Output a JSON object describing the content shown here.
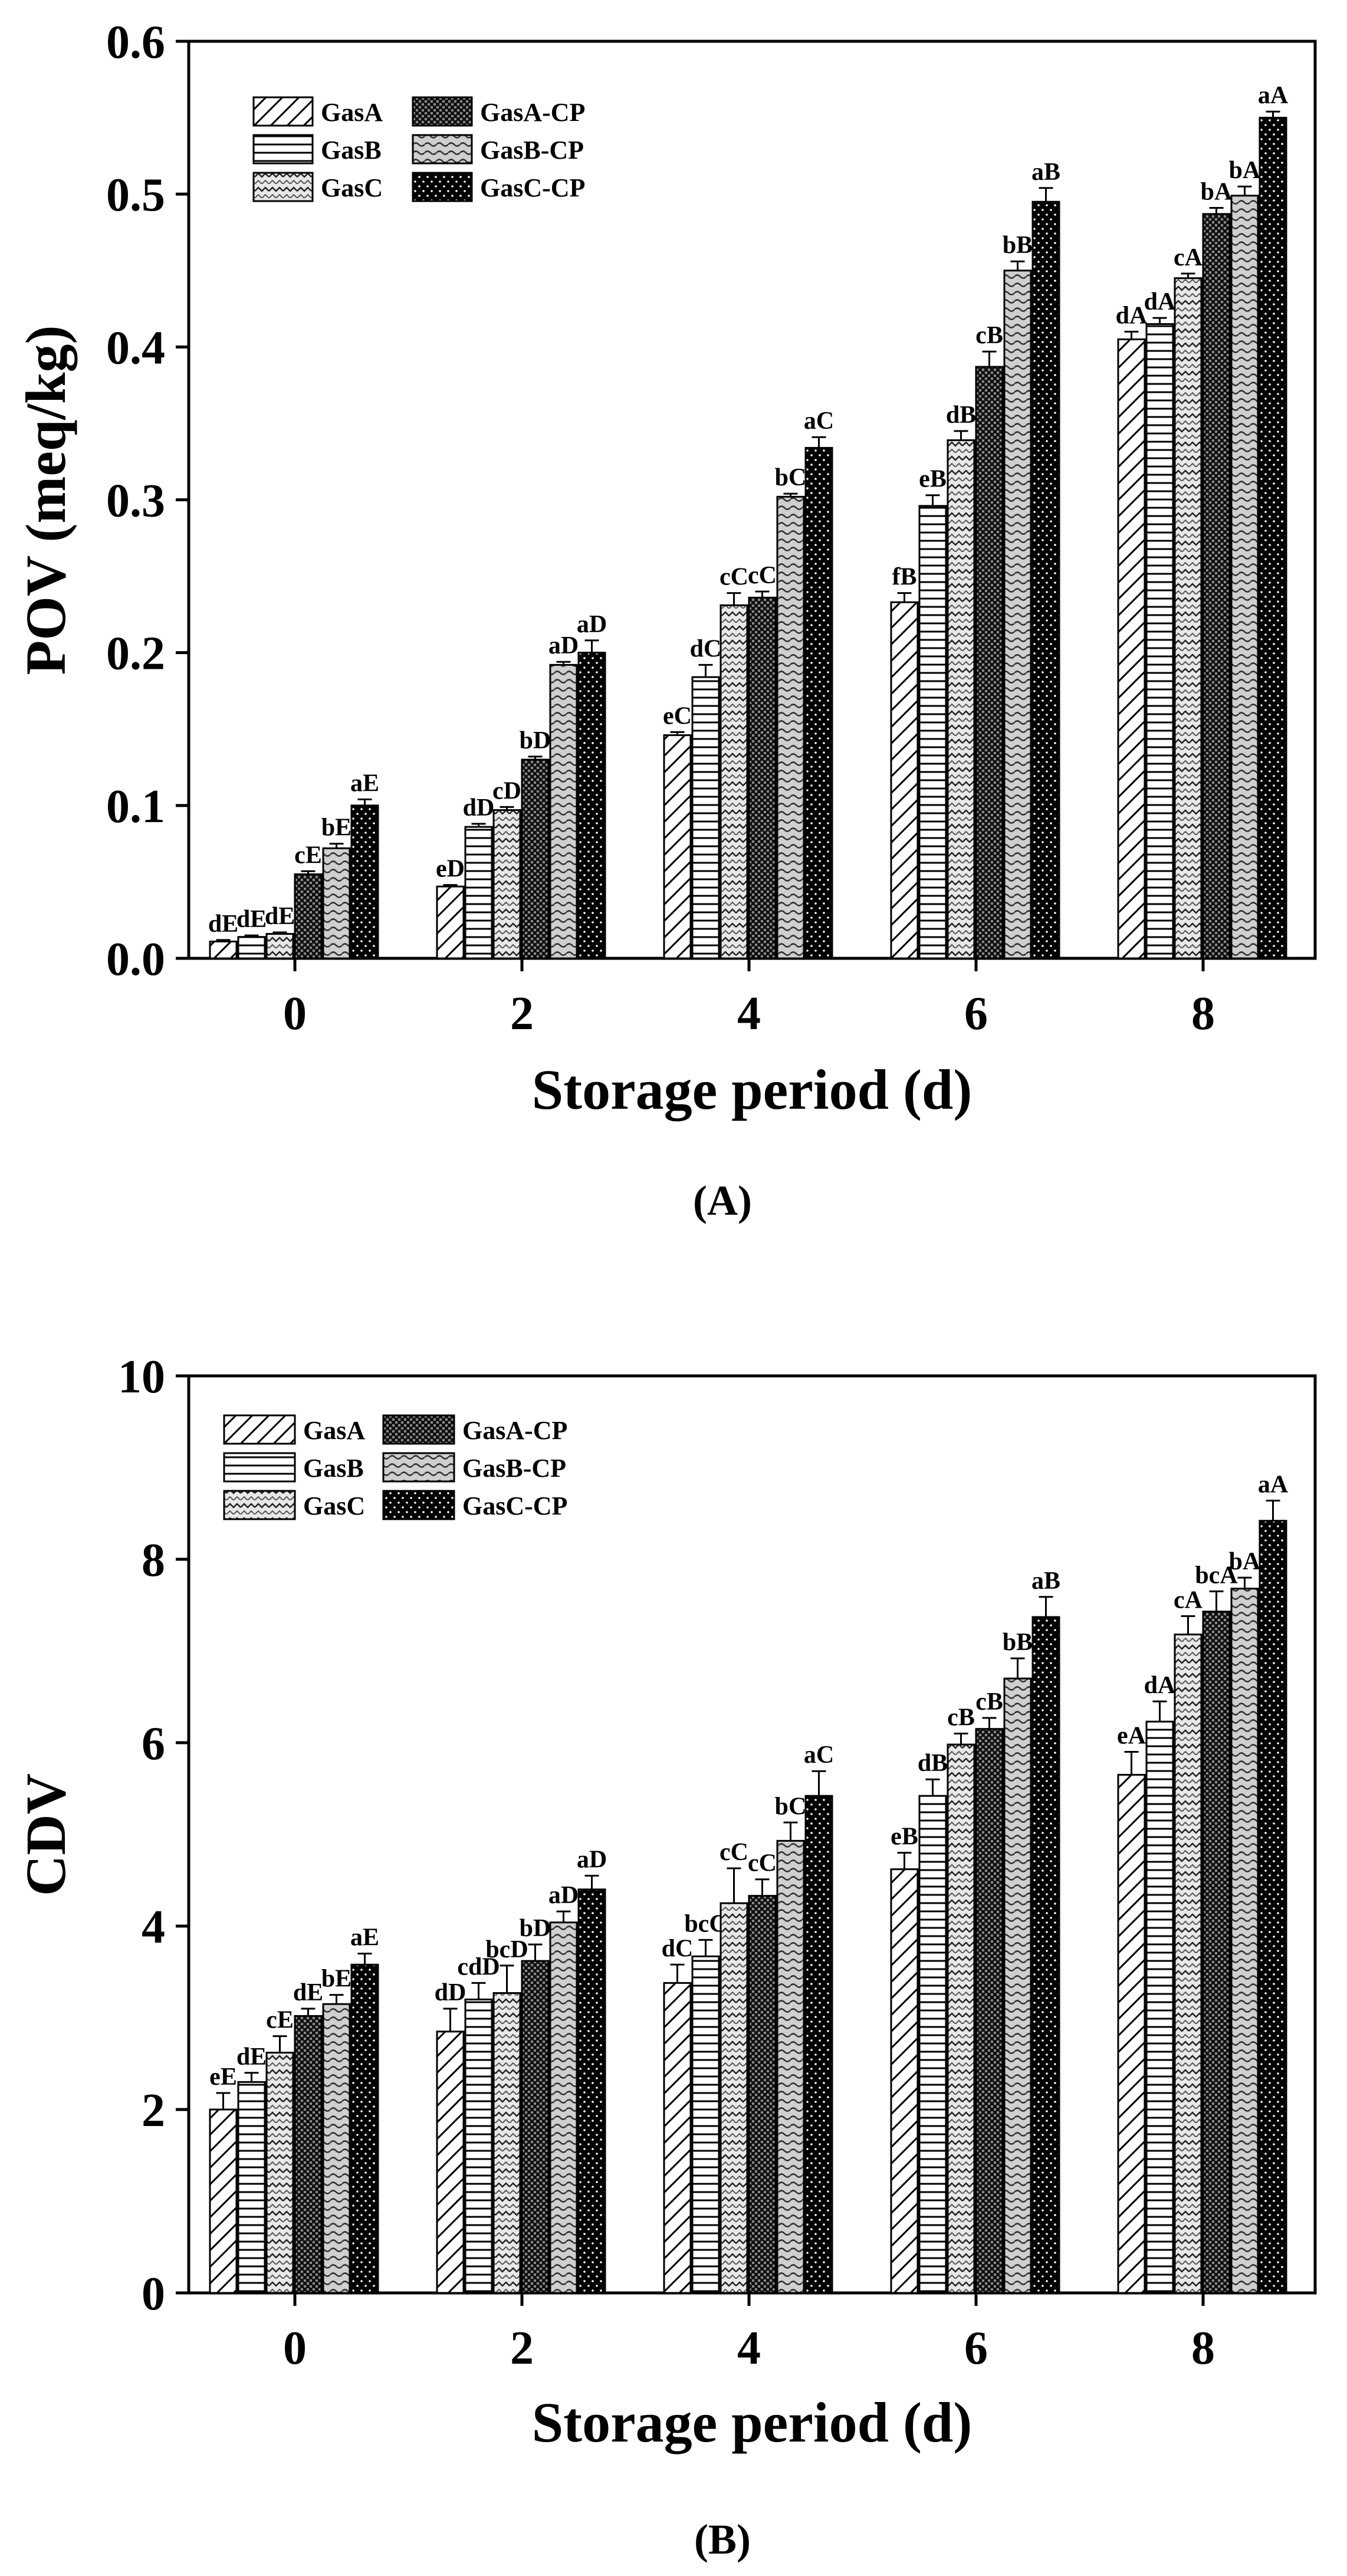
{
  "chart_data": [
    {
      "type": "bar",
      "panel_label": "(A)",
      "xlabel": "Storage period (d)",
      "ylabel": "POV (meq/kg)",
      "categories": [
        "0",
        "2",
        "4",
        "6",
        "8"
      ],
      "ylim": [
        0.0,
        0.6
      ],
      "yticks": [
        "0.0",
        "0.1",
        "0.2",
        "0.3",
        "0.4",
        "0.5",
        "0.6"
      ],
      "ytick_values": [
        0.0,
        0.1,
        0.2,
        0.3,
        0.4,
        0.5,
        0.6
      ],
      "legend": [
        "GasA",
        "GasA-CP",
        "GasB",
        "GasB-CP",
        "GasC",
        "GasC-CP"
      ],
      "series": [
        {
          "name": "GasA",
          "values": [
            0.011,
            0.047,
            0.146,
            0.233,
            0.405
          ],
          "errors": [
            0.001,
            0.001,
            0.002,
            0.006,
            0.005
          ],
          "labels": [
            "dE",
            "eD",
            "eC",
            "fB",
            "dA"
          ]
        },
        {
          "name": "GasB",
          "values": [
            0.014,
            0.086,
            0.184,
            0.296,
            0.415
          ],
          "errors": [
            0.001,
            0.002,
            0.008,
            0.007,
            0.004
          ],
          "labels": [
            "dE",
            "dD",
            "dC",
            "eB",
            "dA"
          ]
        },
        {
          "name": "GasC",
          "values": [
            0.016,
            0.097,
            0.231,
            0.339,
            0.445
          ],
          "errors": [
            0.001,
            0.002,
            0.008,
            0.006,
            0.003
          ],
          "labels": [
            "dE",
            "cD",
            "cC",
            "dB",
            "cA"
          ]
        },
        {
          "name": "GasA-CP",
          "values": [
            0.055,
            0.13,
            0.236,
            0.387,
            0.487
          ],
          "errors": [
            0.002,
            0.002,
            0.004,
            0.01,
            0.004
          ],
          "labels": [
            "cE",
            "bD",
            "cC",
            "cB",
            "bA"
          ]
        },
        {
          "name": "GasB-CP",
          "values": [
            0.072,
            0.192,
            0.302,
            0.45,
            0.499
          ],
          "errors": [
            0.003,
            0.002,
            0.002,
            0.006,
            0.006
          ],
          "labels": [
            "bE",
            "aD",
            "bC",
            "bB",
            "bA"
          ]
        },
        {
          "name": "GasC-CP",
          "values": [
            0.1,
            0.2,
            0.334,
            0.495,
            0.55
          ],
          "errors": [
            0.004,
            0.008,
            0.007,
            0.009,
            0.004
          ],
          "labels": [
            "aE",
            "aD",
            "aC",
            "aB",
            "aA"
          ]
        }
      ]
    },
    {
      "type": "bar",
      "panel_label": "(B)",
      "xlabel": "Storage period (d)",
      "ylabel": "CDV",
      "categories": [
        "0",
        "2",
        "4",
        "6",
        "8"
      ],
      "ylim": [
        0,
        10
      ],
      "yticks": [
        "0",
        "2",
        "4",
        "6",
        "8",
        "10"
      ],
      "ytick_values": [
        0,
        2,
        4,
        6,
        8,
        10
      ],
      "legend": [
        "GasA",
        "GasA-CP",
        "GasB",
        "GasB-CP",
        "GasC",
        "GasC-CP"
      ],
      "series": [
        {
          "name": "GasA",
          "values": [
            2.0,
            2.85,
            3.38,
            4.62,
            5.65
          ],
          "errors": [
            0.18,
            0.25,
            0.2,
            0.18,
            0.25
          ],
          "labels": [
            "eE",
            "dD",
            "dC",
            "eB",
            "eA"
          ]
        },
        {
          "name": "GasB",
          "values": [
            2.3,
            3.2,
            3.67,
            5.42,
            6.23
          ],
          "errors": [
            0.1,
            0.18,
            0.18,
            0.18,
            0.22
          ],
          "labels": [
            "dE",
            "cdD",
            "bcC",
            "dB",
            "dA"
          ]
        },
        {
          "name": "GasC",
          "values": [
            2.62,
            3.27,
            4.25,
            5.98,
            7.18
          ],
          "errors": [
            0.18,
            0.3,
            0.38,
            0.12,
            0.2
          ],
          "labels": [
            "cE",
            "bcD",
            "cC",
            "cB",
            "cA"
          ]
        },
        {
          "name": "GasA-CP",
          "values": [
            3.02,
            3.62,
            4.33,
            6.15,
            7.43
          ],
          "errors": [
            0.08,
            0.18,
            0.18,
            0.12,
            0.22
          ],
          "labels": [
            "dE",
            "bD",
            "cC",
            "cB",
            "bcA"
          ]
        },
        {
          "name": "GasB-CP",
          "values": [
            3.15,
            4.04,
            4.93,
            6.7,
            7.68
          ],
          "errors": [
            0.1,
            0.12,
            0.2,
            0.22,
            0.12
          ],
          "labels": [
            "bE",
            "aD",
            "bC",
            "bB",
            "bA"
          ]
        },
        {
          "name": "GasC-CP",
          "values": [
            3.58,
            4.4,
            5.42,
            7.37,
            8.42
          ],
          "errors": [
            0.12,
            0.15,
            0.27,
            0.22,
            0.22
          ],
          "labels": [
            "aE",
            "aD",
            "aC",
            "aB",
            "aA"
          ]
        }
      ]
    }
  ]
}
